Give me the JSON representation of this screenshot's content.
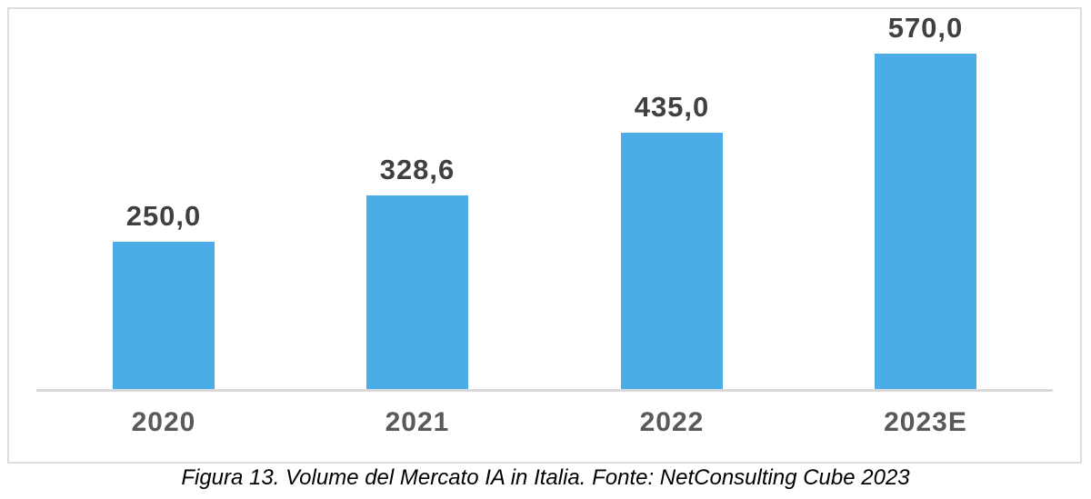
{
  "chart_data": {
    "type": "bar",
    "categories": [
      "2020",
      "2021",
      "2022",
      "2023E"
    ],
    "values": [
      250.0,
      328.6,
      435.0,
      570.0
    ],
    "value_labels": [
      "250,0",
      "328,6",
      "435,0",
      "570,0"
    ],
    "series_name": "Volume del Mercato IA in Italia",
    "xlabel": "",
    "ylabel": "",
    "ylim": [
      0,
      645
    ],
    "grid": false,
    "legend": false,
    "caption": "Figura 13. Volume del Mercato IA in Italia. Fonte: NetConsulting Cube 2023",
    "colors": {
      "bar": "#4bace8",
      "axis_line": "#d9d9d9",
      "frame_border": "#dcdcdc",
      "value_label": "#404040",
      "tick_label": "#595959",
      "caption": "#000000",
      "background": "#ffffff"
    }
  }
}
